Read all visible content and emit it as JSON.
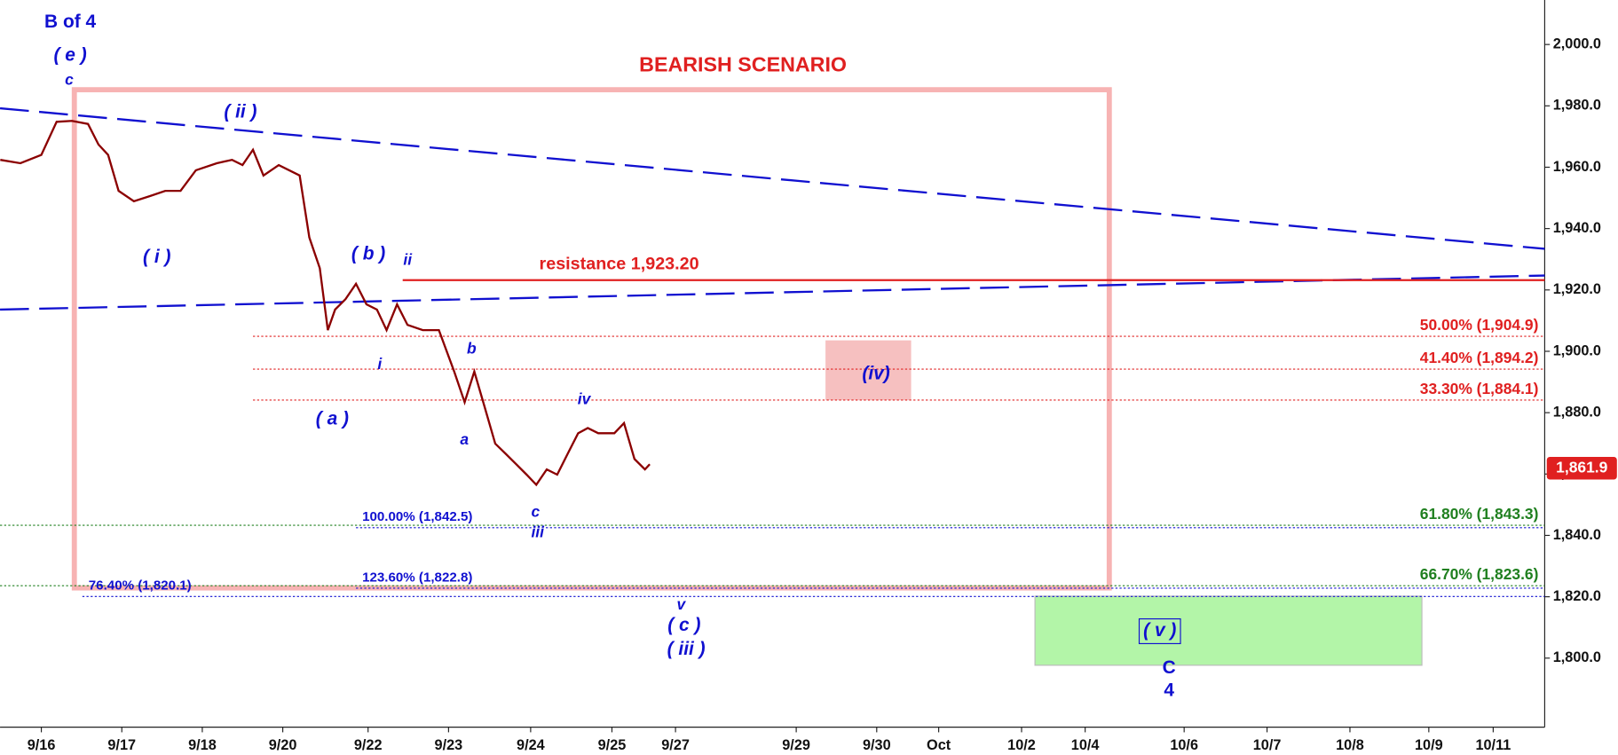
{
  "chart_data": {
    "type": "line",
    "title": "BEARISH SCENARIO",
    "x": [
      -0.51,
      -0.26,
      0,
      0.19,
      0.38,
      0.58,
      0.71,
      0.83,
      0.96,
      1.15,
      1.35,
      1.54,
      1.73,
      1.92,
      2.18,
      2.37,
      2.5,
      2.63,
      2.76,
      2.95,
      3.21,
      3.33,
      3.46,
      3.56,
      3.65,
      3.78,
      3.91,
      4.04,
      4.17,
      4.29,
      4.42,
      4.55,
      4.74,
      4.94,
      5.13,
      5.26,
      5.38,
      5.51,
      5.64,
      5.77,
      5.9,
      6.03,
      6.15,
      6.28,
      6.41,
      6.54,
      6.67,
      6.79,
      6.92,
      7.12,
      7.24,
      7.37,
      7.5,
      7.56
    ],
    "series": [
      {
        "color": "#8b0000",
        "values": [
          1962.4,
          1961.3,
          1964.0,
          1974.8,
          1975.1,
          1974.1,
          1967.4,
          1964.0,
          1952.3,
          1948.9,
          1950.6,
          1952.3,
          1952.3,
          1959.0,
          1961.3,
          1962.4,
          1960.7,
          1965.7,
          1957.3,
          1960.7,
          1957.3,
          1937.1,
          1927.1,
          1906.9,
          1913.6,
          1917.0,
          1922.0,
          1915.3,
          1913.6,
          1906.9,
          1915.3,
          1908.6,
          1906.9,
          1906.9,
          1893.4,
          1883.4,
          1893.4,
          1881.7,
          1869.9,
          1866.6,
          1863.2,
          1859.8,
          1856.5,
          1861.5,
          1859.8,
          1866.6,
          1873.3,
          1875.0,
          1873.3,
          1873.3,
          1876.6,
          1864.9,
          1861.5,
          1863.2
        ]
      }
    ],
    "xlim": [
      -0.513,
      18.68
    ],
    "xticks": [
      {
        "value": 0,
        "label": "9/16"
      },
      {
        "value": 1,
        "label": "9/17"
      },
      {
        "value": 2,
        "label": "9/18"
      },
      {
        "value": 3,
        "label": "9/20"
      },
      {
        "value": 4.06,
        "label": "9/22"
      },
      {
        "value": 5.06,
        "label": "9/23"
      },
      {
        "value": 6.08,
        "label": "9/24"
      },
      {
        "value": 7.09,
        "label": "9/25"
      },
      {
        "value": 7.88,
        "label": "9/27"
      },
      {
        "value": 9.38,
        "label": "9/29"
      },
      {
        "value": 10.38,
        "label": "9/30"
      },
      {
        "value": 11.15,
        "label": "Oct"
      },
      {
        "value": 12.18,
        "label": "10/2"
      },
      {
        "value": 12.97,
        "label": "10/4"
      },
      {
        "value": 14.2,
        "label": "10/6"
      },
      {
        "value": 15.23,
        "label": "10/7"
      },
      {
        "value": 16.26,
        "label": "10/8"
      },
      {
        "value": 17.24,
        "label": "10/9"
      },
      {
        "value": 18.04,
        "label": "10/11"
      }
    ],
    "ylim": [
      1777.5,
      2014.5
    ],
    "yticks": [
      {
        "value": 1800,
        "label": "1,800.0"
      },
      {
        "value": 1820,
        "label": "1,820.0"
      },
      {
        "value": 1840,
        "label": "1,840.0"
      },
      {
        "value": 1860,
        "label": "1,860.0"
      },
      {
        "value": 1880,
        "label": "1,880.0"
      },
      {
        "value": 1900,
        "label": "1,900.0"
      },
      {
        "value": 1920,
        "label": "1,920.0"
      },
      {
        "value": 1940,
        "label": "1,940.0"
      },
      {
        "value": 1960,
        "label": "1,960.0"
      },
      {
        "value": 1980,
        "label": "1,980.0"
      },
      {
        "value": 2000,
        "label": "2,000.0"
      }
    ],
    "last_price": {
      "value": 1861.9,
      "label": "1,861.9"
    },
    "resistance": {
      "value": 1923.2,
      "x0": 4.49,
      "label": "resistance 1,923.20",
      "color": "#e02020"
    },
    "levels": [
      {
        "label": "50.00% (1,904.9)",
        "value": 1904.9,
        "x0": 2.63,
        "color": "#e02020"
      },
      {
        "label": "41.40% (1,894.2)",
        "value": 1894.2,
        "x0": 2.63,
        "color": "#e02020"
      },
      {
        "label": "33.30% (1,884.1)",
        "value": 1884.1,
        "x0": 2.63,
        "color": "#e02020"
      },
      {
        "label": "61.80% (1,843.3)",
        "value": 1843.3,
        "x0": -0.513,
        "color": "#208020"
      },
      {
        "label": "66.70% (1,823.6)",
        "value": 1823.6,
        "x0": -0.513,
        "color": "#208020"
      },
      {
        "label": "100.00% (1,842.5)",
        "value": 1842.5,
        "x0": 3.91,
        "color": "#1010d0"
      },
      {
        "label": "123.60% (1,822.8)",
        "value": 1822.8,
        "x0": 3.91,
        "color": "#1010d0"
      },
      {
        "label": "76.40% (1,820.1)",
        "value": 1820.1,
        "x0": 0.51,
        "color": "#1010d0"
      }
    ],
    "trendlines": [
      {
        "x": [
          -0.513,
          18.68
        ],
        "values": [
          1979.2,
          1933.4
        ],
        "color": "#1010d0"
      },
      {
        "x": [
          -0.513,
          18.68
        ],
        "values": [
          1913.6,
          1924.7
        ],
        "color": "#1010d0"
      }
    ],
    "annotations": [
      "B of 4",
      "( e )",
      "c",
      "( ii )",
      "( i )",
      "( b )",
      "ii",
      "( a )",
      "i",
      "b",
      "a",
      "iv",
      "c",
      "iii",
      "v",
      "( c )",
      "( iii )",
      "(iv)",
      "( v )",
      "C",
      "4"
    ]
  }
}
